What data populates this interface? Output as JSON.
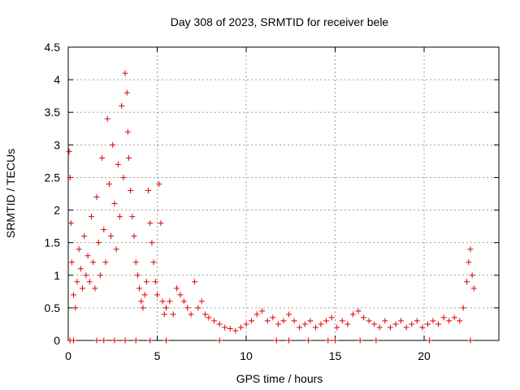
{
  "chart_data": {
    "type": "scatter",
    "title": "Day 308 of 2023, SRMTID for receiver bele",
    "xlabel": "GPS time / hours",
    "ylabel": "SRMTID / TECUs",
    "xlim": [
      0,
      24.2
    ],
    "ylim": [
      0,
      4.5
    ],
    "x_ticks": [
      0,
      5,
      10,
      15,
      20
    ],
    "y_ticks": [
      0,
      0.5,
      1,
      1.5,
      2,
      2.5,
      3,
      3.5,
      4,
      4.5
    ],
    "x_tick_labels": [
      "0",
      "5",
      "10",
      "15",
      "20"
    ],
    "y_tick_labels": [
      "0",
      "0.5",
      "1",
      "1.5",
      "2",
      "2.5",
      "3",
      "3.5",
      "4",
      "4.5"
    ],
    "grid": true,
    "marker": "+",
    "color": "#e00000",
    "series": [
      {
        "name": "SRMTID",
        "x": [
          0.05,
          0.1,
          0.15,
          0.2,
          0.3,
          0.4,
          0.5,
          0.6,
          0.7,
          0.8,
          0.9,
          1.0,
          1.1,
          1.2,
          1.3,
          1.4,
          1.5,
          1.6,
          1.7,
          1.8,
          1.9,
          2.0,
          2.1,
          2.2,
          2.3,
          2.4,
          2.5,
          2.6,
          2.7,
          2.8,
          2.9,
          3.0,
          3.1,
          3.2,
          3.3,
          3.35,
          3.4,
          3.5,
          3.6,
          3.7,
          3.8,
          3.9,
          4.0,
          4.1,
          4.2,
          4.3,
          4.4,
          4.5,
          4.6,
          4.7,
          4.8,
          4.9,
          5.0,
          5.1,
          5.2,
          5.3,
          5.4,
          5.5,
          5.7,
          5.9,
          6.1,
          6.3,
          6.5,
          6.7,
          6.9,
          7.1,
          7.3,
          7.5,
          7.7,
          7.9,
          8.2,
          8.5,
          8.8,
          9.1,
          9.4,
          9.7,
          10.0,
          10.3,
          10.6,
          10.9,
          11.2,
          11.5,
          11.8,
          12.1,
          12.4,
          12.7,
          13.0,
          13.3,
          13.6,
          13.9,
          14.2,
          14.5,
          14.8,
          15.1,
          15.4,
          15.7,
          16.0,
          16.3,
          16.6,
          16.9,
          17.2,
          17.5,
          17.8,
          18.1,
          18.4,
          18.7,
          19.0,
          19.3,
          19.6,
          19.9,
          20.2,
          20.5,
          20.8,
          21.1,
          21.4,
          21.7,
          22.0,
          22.2,
          22.4,
          22.5,
          22.6,
          22.7,
          22.8
        ],
        "y": [
          2.9,
          2.5,
          1.8,
          1.2,
          0.7,
          0.5,
          0.9,
          1.4,
          1.1,
          0.8,
          1.6,
          1.0,
          1.3,
          0.9,
          1.9,
          1.2,
          0.8,
          2.2,
          1.5,
          1.0,
          2.8,
          1.7,
          1.2,
          3.4,
          2.4,
          1.6,
          3.0,
          2.1,
          1.4,
          2.7,
          1.9,
          3.6,
          2.5,
          4.1,
          3.8,
          3.2,
          2.8,
          2.3,
          1.9,
          1.6,
          1.2,
          1.0,
          0.8,
          0.6,
          0.5,
          0.7,
          0.9,
          2.3,
          1.8,
          1.5,
          1.2,
          0.9,
          0.7,
          2.4,
          1.8,
          0.6,
          0.4,
          0.5,
          0.6,
          0.4,
          0.8,
          0.7,
          0.6,
          0.5,
          0.4,
          0.9,
          0.5,
          0.6,
          0.4,
          0.35,
          0.3,
          0.25,
          0.2,
          0.18,
          0.15,
          0.2,
          0.25,
          0.3,
          0.4,
          0.45,
          0.3,
          0.35,
          0.25,
          0.3,
          0.4,
          0.3,
          0.2,
          0.25,
          0.3,
          0.2,
          0.25,
          0.3,
          0.35,
          0.2,
          0.3,
          0.25,
          0.4,
          0.45,
          0.35,
          0.3,
          0.25,
          0.2,
          0.3,
          0.2,
          0.25,
          0.3,
          0.2,
          0.25,
          0.3,
          0.2,
          0.25,
          0.3,
          0.25,
          0.35,
          0.3,
          0.35,
          0.3,
          0.5,
          0.9,
          1.2,
          1.4,
          1.0,
          0.8
        ],
        "zero_x": [
          0.1,
          0.3,
          1.6,
          2.0,
          2.6,
          3.2,
          3.8,
          4.6,
          5.5,
          8.5,
          11.7,
          12.4,
          13.5,
          14.6,
          15.0,
          16.4,
          17.3,
          20.3,
          22.6
        ]
      }
    ]
  }
}
